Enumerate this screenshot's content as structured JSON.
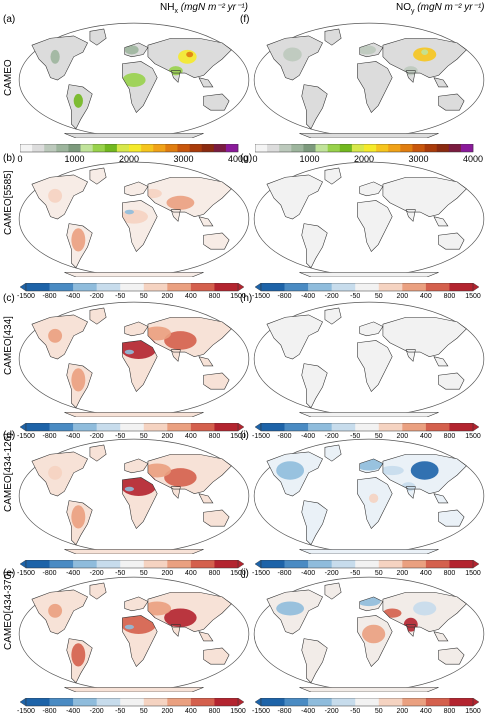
{
  "columns": {
    "left_title": "NH",
    "left_sub": "x",
    "left_units": "(mgN m⁻² yr⁻¹)",
    "right_title": "NO",
    "right_sub": "y",
    "right_units": "(mgN m⁻² yr⁻¹)"
  },
  "rows": [
    {
      "name": "CAMEO",
      "left_panel": "(a)",
      "right_panel": "(f)",
      "colorbar": "absolute"
    },
    {
      "name": "CAMEO[5585]",
      "left_panel": "(b)",
      "right_panel": "(g)",
      "colorbar": "diff"
    },
    {
      "name": "CAMEO[434]",
      "left_panel": "(c)",
      "right_panel": "(h)",
      "colorbar": "diff"
    },
    {
      "name": "CAMEO[434-126]",
      "left_panel": "(d)",
      "right_panel": "(i)",
      "colorbar": "diff"
    },
    {
      "name": "CAMEO[434-370]",
      "left_panel": "(e)",
      "right_panel": "(j)",
      "colorbar": "diff"
    }
  ],
  "abs_colorbar": {
    "ticks": [
      "0",
      "1000",
      "2000",
      "3000",
      "4000"
    ],
    "colors": [
      "#f4f4f4",
      "#dcdcdc",
      "#bcc9bc",
      "#9db59d",
      "#7d9a7d",
      "#c0e39a",
      "#98d24b",
      "#72b81f",
      "#d7e84a",
      "#f5ea2a",
      "#f6c51e",
      "#f0a218",
      "#e07d10",
      "#c8560c",
      "#a93b0a",
      "#8a2a10",
      "#7a1c40",
      "#8a1a9a"
    ]
  },
  "diff_colorbar": {
    "ticks": [
      "-1500",
      "-800",
      "-400",
      "-200",
      "-50",
      "50",
      "200",
      "400",
      "800",
      "1500"
    ],
    "colors": [
      "#1d63a8",
      "#4a8bc3",
      "#8fbcdc",
      "#c7dcec",
      "#f2f2f2",
      "#f5d3c1",
      "#eaa080",
      "#d4604d",
      "#b3242f"
    ]
  },
  "map_colors": {
    "ocean": "#ffffff",
    "land_absent": "#f2f2f2",
    "coast": "#333333"
  }
}
